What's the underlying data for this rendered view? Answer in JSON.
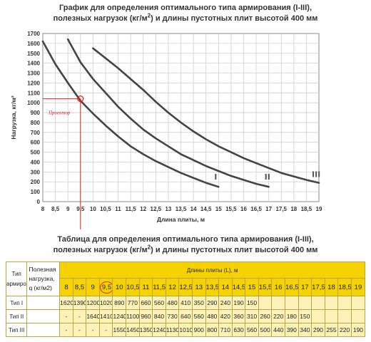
{
  "chart_title": {
    "line1": "График для определения оптимального типа армирования (I-III),",
    "line2_pre": "полезных нагрузок (кг/м",
    "line2_sup": "2",
    "line2_post": ")  и длины пустотных плит высотой 400 мм"
  },
  "chart_data": {
    "type": "line",
    "xlabel": "Длина плиты, м",
    "ylabel": "Нагрузка, кг/м²",
    "xlim": [
      8,
      19
    ],
    "ylim": [
      0,
      1700
    ],
    "x_ticks": [
      "8",
      "8,5",
      "9",
      "9,5",
      "10",
      "10,5",
      "11",
      "11,5",
      "12",
      "12,5",
      "13",
      "13,5",
      "14",
      "14,5",
      "15",
      "15,5",
      "16",
      "16,5",
      "17",
      "17,5",
      "18",
      "18,5",
      "19"
    ],
    "y_ticks": [
      "0",
      "100",
      "200",
      "300",
      "400",
      "500",
      "600",
      "700",
      "800",
      "900",
      "1000",
      "1100",
      "1200",
      "1300",
      "1400",
      "1500",
      "1600",
      "1700"
    ],
    "grid": true,
    "series": [
      {
        "name": "I",
        "x": [
          8,
          8.5,
          9,
          9.5,
          10,
          10.5,
          11,
          11.5,
          12,
          12.5,
          13,
          13.5,
          14,
          14.5,
          15
        ],
        "y": [
          1620,
          1390,
          1200,
          1020,
          890,
          770,
          660,
          560,
          480,
          410,
          350,
          290,
          240,
          190,
          150
        ]
      },
      {
        "name": "II",
        "x": [
          9,
          9.5,
          10,
          10.5,
          11,
          11.5,
          12,
          12.5,
          13,
          13.5,
          14,
          14.5,
          15,
          15.5,
          16,
          16.5,
          17
        ],
        "y": [
          1640,
          1410,
          1240,
          1100,
          960,
          840,
          730,
          640,
          560,
          480,
          420,
          360,
          310,
          260,
          220,
          180,
          150
        ]
      },
      {
        "name": "III",
        "x": [
          10,
          10.5,
          11,
          11.5,
          12,
          12.5,
          13,
          13.5,
          14,
          14.5,
          15,
          15.5,
          16,
          16.5,
          17,
          17.5,
          18,
          18.5,
          19
        ],
        "y": [
          1550,
          1450,
          1350,
          1240,
          1130,
          1010,
          900,
          800,
          710,
          630,
          560,
          500,
          440,
          390,
          340,
          290,
          255,
          220,
          190
        ]
      }
    ],
    "annotation": {
      "label": "Проектор",
      "x": 9.5,
      "y": 1040
    }
  },
  "table_title": {
    "line1": "Таблица для определения оптимального типа армирования (I-III),",
    "line2_pre": "полезных нагрузок (кг/м",
    "line2_sup": "2",
    "line2_post": ")  и длины пустотных плит высотой 400 мм"
  },
  "table": {
    "type_header": "Тип армирования",
    "load_header": "Полезная нагрузка, q (кг/м2)",
    "length_header": "Длины плиты (L), м",
    "lengths": [
      "8",
      "8,5",
      "9",
      "9,5",
      "10",
      "10,5",
      "11",
      "11,5",
      "12",
      "12,5",
      "13",
      "13,5",
      "14",
      "14,5",
      "15",
      "15,5",
      "16",
      "16,5",
      "17",
      "17,5",
      "18",
      "18,5",
      "19"
    ],
    "highlight_length_index": 3,
    "rows": [
      {
        "label": "Тип I",
        "values": [
          "1620",
          "1390",
          "1200",
          "1020",
          "890",
          "770",
          "660",
          "560",
          "480",
          "410",
          "350",
          "290",
          "240",
          "190",
          "150",
          "",
          "",
          "",
          "",
          "",
          "",
          "",
          ""
        ]
      },
      {
        "label": "Тип II",
        "values": [
          "-",
          "-",
          "1640",
          "1410",
          "1240",
          "1100",
          "960",
          "840",
          "730",
          "640",
          "560",
          "480",
          "420",
          "360",
          "310",
          "260",
          "220",
          "180",
          "150",
          "",
          "",
          "",
          ""
        ]
      },
      {
        "label": "Тип III",
        "values": [
          "-",
          "-",
          "-",
          "-",
          "1550",
          "1450",
          "1350",
          "1240",
          "1130",
          "1010",
          "900",
          "800",
          "710",
          "630",
          "560",
          "500",
          "440",
          "390",
          "340",
          "290",
          "255",
          "220",
          "190"
        ]
      }
    ],
    "colors": {
      "header": "#f5d200",
      "body": "#fdf3b8",
      "grid": "#b9a24a"
    }
  }
}
